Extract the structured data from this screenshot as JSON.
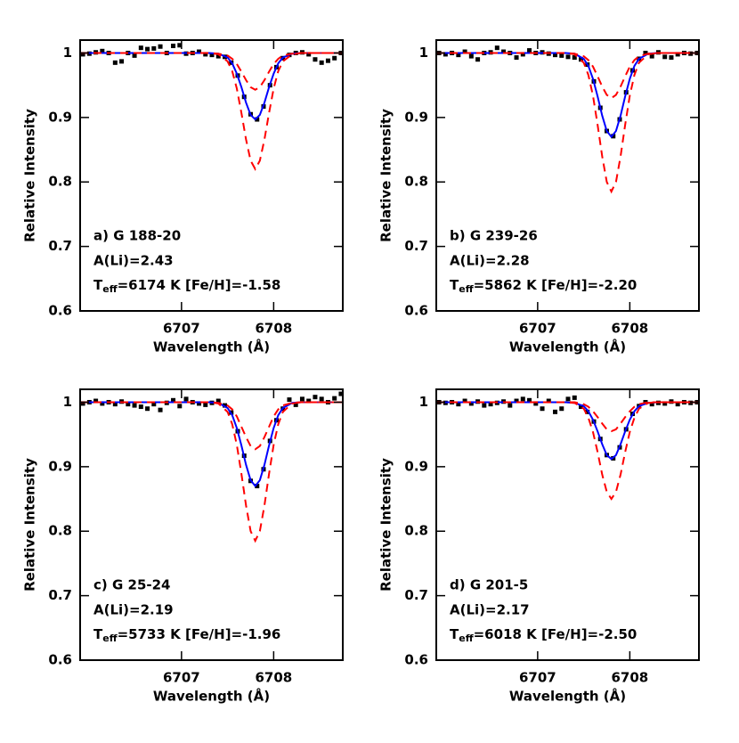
{
  "chart_data": [
    {
      "type": "line",
      "x": [
        6705.9,
        6707.3,
        6707.4,
        6707.5,
        6707.55,
        6707.6,
        6707.65,
        6707.7,
        6707.75,
        6707.8,
        6707.85,
        6707.9,
        6707.95,
        6708.0,
        6708.05,
        6708.1,
        6708.2,
        6708.3,
        6708.75
      ],
      "xlim": [
        6705.9,
        6708.75
      ],
      "xticks": [
        6707,
        6708
      ],
      "ylim": [
        0.6,
        1.02
      ],
      "yticks": [
        0.6,
        0.7,
        0.8,
        0.9,
        1
      ],
      "xlabel": "Wavelength (Å)",
      "ylabel": "Relative Intensity",
      "annotations": [
        "a) G 188-20",
        "A(Li)=2.43",
        "T",
        "eff",
        "=6174 K  [Fe/H]=-1.58"
      ],
      "series": [
        {
          "marker": "square",
          "color": "#000000",
          "x": [
            6705.93,
            6706.0,
            6706.07,
            6706.14,
            6706.21,
            6706.28,
            6706.35,
            6706.42,
            6706.49,
            6706.56,
            6706.63,
            6706.7,
            6706.77,
            6706.84,
            6706.91,
            6706.98,
            6707.05,
            6707.12,
            6707.19,
            6707.26,
            6707.33,
            6707.4,
            6707.47,
            6707.54,
            6707.61,
            6707.68,
            6707.75,
            6707.82,
            6707.89,
            6707.96,
            6708.03,
            6708.1,
            6708.17,
            6708.24,
            6708.31,
            6708.38,
            6708.45,
            6708.52,
            6708.59,
            6708.66,
            6708.73
          ],
          "values": [
            0.998,
            0.999,
            1.001,
            1.003,
            1.0,
            0.985,
            0.987,
            1.0,
            0.996,
            1.008,
            1.006,
            1.007,
            1.01,
            1.0,
            1.011,
            1.012,
            0.999,
            1.0,
            1.002,
            0.998,
            0.997,
            0.995,
            0.994,
            0.985,
            0.965,
            0.932,
            0.905,
            0.897,
            0.917,
            0.95,
            0.978,
            0.992,
            0.997,
            1.0,
            1.001,
            0.998,
            0.99,
            0.985,
            0.988,
            0.992,
            1.0
          ]
        },
        {
          "color": "#0000ff",
          "values": [
            1,
            1,
            0.999,
            0.993,
            0.984,
            0.968,
            0.947,
            0.923,
            0.904,
            0.897,
            0.904,
            0.923,
            0.947,
            0.968,
            0.984,
            0.993,
            0.999,
            1,
            1
          ]
        },
        {
          "color": "#ff0000",
          "dash": true,
          "values": [
            1,
            1,
            0.999,
            0.996,
            0.991,
            0.983,
            0.971,
            0.958,
            0.947,
            0.943,
            0.947,
            0.958,
            0.971,
            0.983,
            0.991,
            0.996,
            0.999,
            1,
            1
          ]
        },
        {
          "color": "#ff0000",
          "dash": true,
          "values": [
            1,
            1,
            0.998,
            0.987,
            0.972,
            0.945,
            0.907,
            0.866,
            0.833,
            0.82,
            0.833,
            0.866,
            0.907,
            0.945,
            0.972,
            0.987,
            0.998,
            1,
            1
          ]
        }
      ]
    },
    {
      "type": "line",
      "x": [
        6705.9,
        6707.3,
        6707.4,
        6707.5,
        6707.55,
        6707.6,
        6707.65,
        6707.7,
        6707.75,
        6707.8,
        6707.85,
        6707.9,
        6707.95,
        6708.0,
        6708.05,
        6708.1,
        6708.2,
        6708.3,
        6708.75
      ],
      "xlim": [
        6705.9,
        6708.75
      ],
      "xticks": [
        6707,
        6708
      ],
      "ylim": [
        0.6,
        1.02
      ],
      "yticks": [
        0.6,
        0.7,
        0.8,
        0.9,
        1
      ],
      "xlabel": "Wavelength (Å)",
      "ylabel": "Relative Intensity",
      "annotations": [
        "b) G 239-26",
        "A(Li)=2.28",
        "T",
        "eff",
        "=5862 K  [Fe/H]=-2.20"
      ],
      "series": [
        {
          "marker": "square",
          "color": "#000000",
          "x": [
            6705.93,
            6706.0,
            6706.07,
            6706.14,
            6706.21,
            6706.28,
            6706.35,
            6706.42,
            6706.49,
            6706.56,
            6706.63,
            6706.7,
            6706.77,
            6706.84,
            6706.91,
            6706.98,
            6707.05,
            6707.12,
            6707.19,
            6707.26,
            6707.33,
            6707.4,
            6707.47,
            6707.54,
            6707.61,
            6707.68,
            6707.75,
            6707.82,
            6707.89,
            6707.96,
            6708.03,
            6708.1,
            6708.17,
            6708.24,
            6708.31,
            6708.38,
            6708.45,
            6708.52,
            6708.59,
            6708.66,
            6708.73
          ],
          "values": [
            1.0,
            0.998,
            1.0,
            0.997,
            1.002,
            0.995,
            0.99,
            1.0,
            1.001,
            1.008,
            1.002,
            1.0,
            0.993,
            0.998,
            1.004,
            1.0,
            1.001,
            0.999,
            0.997,
            0.996,
            0.994,
            0.993,
            0.99,
            0.982,
            0.956,
            0.915,
            0.879,
            0.871,
            0.897,
            0.939,
            0.973,
            0.991,
            1.0,
            0.995,
            1.001,
            0.994,
            0.993,
            0.998,
            1.0,
            0.999,
            1.0
          ]
        },
        {
          "color": "#0000ff",
          "values": [
            1,
            1,
            0.999,
            0.991,
            0.98,
            0.96,
            0.933,
            0.903,
            0.879,
            0.87,
            0.879,
            0.903,
            0.933,
            0.96,
            0.98,
            0.991,
            0.999,
            1,
            1
          ]
        },
        {
          "color": "#ff0000",
          "dash": true,
          "values": [
            1,
            1,
            0.999,
            0.995,
            0.989,
            0.979,
            0.964,
            0.948,
            0.935,
            0.93,
            0.935,
            0.948,
            0.964,
            0.979,
            0.989,
            0.995,
            0.999,
            1,
            1
          ]
        },
        {
          "color": "#ff0000",
          "dash": true,
          "values": [
            1,
            1,
            0.998,
            0.985,
            0.966,
            0.934,
            0.889,
            0.84,
            0.8,
            0.785,
            0.8,
            0.84,
            0.889,
            0.934,
            0.966,
            0.985,
            0.998,
            1,
            1
          ]
        }
      ]
    },
    {
      "type": "line",
      "x": [
        6705.9,
        6707.3,
        6707.4,
        6707.5,
        6707.55,
        6707.6,
        6707.65,
        6707.7,
        6707.75,
        6707.8,
        6707.85,
        6707.9,
        6707.95,
        6708.0,
        6708.05,
        6708.1,
        6708.2,
        6708.3,
        6708.75
      ],
      "xlim": [
        6705.9,
        6708.75
      ],
      "xticks": [
        6707,
        6708
      ],
      "ylim": [
        0.6,
        1.02
      ],
      "yticks": [
        0.6,
        0.7,
        0.8,
        0.9,
        1
      ],
      "xlabel": "Wavelength (Å)",
      "ylabel": "Relative Intensity",
      "annotations": [
        "c) G 25-24",
        "A(Li)=2.19",
        "T",
        "eff",
        "=5733 K  [Fe/H]=-1.96"
      ],
      "series": [
        {
          "marker": "square",
          "color": "#000000",
          "x": [
            6705.93,
            6706.0,
            6706.07,
            6706.14,
            6706.21,
            6706.28,
            6706.35,
            6706.42,
            6706.49,
            6706.56,
            6706.63,
            6706.7,
            6706.77,
            6706.84,
            6706.91,
            6706.98,
            6707.05,
            6707.12,
            6707.19,
            6707.26,
            6707.33,
            6707.4,
            6707.47,
            6707.54,
            6707.61,
            6707.68,
            6707.75,
            6707.82,
            6707.89,
            6707.96,
            6708.03,
            6708.1,
            6708.17,
            6708.24,
            6708.31,
            6708.38,
            6708.45,
            6708.52,
            6708.59,
            6708.66,
            6708.73
          ],
          "values": [
            0.998,
            1.0,
            1.002,
            0.998,
            1.0,
            0.997,
            1.001,
            0.997,
            0.995,
            0.993,
            0.99,
            0.997,
            0.988,
            0.999,
            1.003,
            0.994,
            1.005,
            1.0,
            0.998,
            0.996,
            0.999,
            1.002,
            0.995,
            0.984,
            0.955,
            0.917,
            0.878,
            0.87,
            0.896,
            0.94,
            0.972,
            0.99,
            1.004,
            0.996,
            1.005,
            1.002,
            1.008,
            1.005,
            1.0,
            1.006,
            1.013
          ]
        },
        {
          "color": "#0000ff",
          "values": [
            1,
            1,
            0.999,
            0.991,
            0.98,
            0.96,
            0.933,
            0.903,
            0.879,
            0.87,
            0.879,
            0.903,
            0.933,
            0.96,
            0.98,
            0.991,
            0.999,
            1,
            1
          ]
        },
        {
          "color": "#ff0000",
          "dash": true,
          "values": [
            1,
            1,
            0.999,
            0.995,
            0.989,
            0.978,
            0.962,
            0.946,
            0.932,
            0.927,
            0.932,
            0.946,
            0.962,
            0.978,
            0.989,
            0.995,
            0.999,
            1,
            1
          ]
        },
        {
          "color": "#ff0000",
          "dash": true,
          "values": [
            1,
            1,
            0.998,
            0.985,
            0.966,
            0.934,
            0.889,
            0.84,
            0.8,
            0.785,
            0.8,
            0.84,
            0.889,
            0.934,
            0.966,
            0.985,
            0.998,
            1,
            1
          ]
        }
      ]
    },
    {
      "type": "line",
      "x": [
        6705.9,
        6707.3,
        6707.4,
        6707.5,
        6707.55,
        6707.6,
        6707.65,
        6707.7,
        6707.75,
        6707.8,
        6707.85,
        6707.9,
        6707.95,
        6708.0,
        6708.05,
        6708.1,
        6708.2,
        6708.3,
        6708.75
      ],
      "xlim": [
        6705.9,
        6708.75
      ],
      "xticks": [
        6707,
        6708
      ],
      "ylim": [
        0.6,
        1.02
      ],
      "yticks": [
        0.6,
        0.7,
        0.8,
        0.9,
        1
      ],
      "xlabel": "Wavelength (Å)",
      "ylabel": "Relative Intensity",
      "annotations": [
        "d) G 201-5",
        "A(Li)=2.17",
        "T",
        "eff",
        "=6018 K  [Fe/H]=-2.50"
      ],
      "series": [
        {
          "marker": "square",
          "color": "#000000",
          "x": [
            6705.93,
            6706.0,
            6706.07,
            6706.14,
            6706.21,
            6706.28,
            6706.35,
            6706.42,
            6706.49,
            6706.56,
            6706.63,
            6706.7,
            6706.77,
            6706.84,
            6706.91,
            6706.98,
            6707.05,
            6707.12,
            6707.19,
            6707.26,
            6707.33,
            6707.4,
            6707.47,
            6707.54,
            6707.61,
            6707.68,
            6707.75,
            6707.82,
            6707.89,
            6707.96,
            6708.03,
            6708.1,
            6708.17,
            6708.24,
            6708.31,
            6708.38,
            6708.45,
            6708.52,
            6708.59,
            6708.66,
            6708.73
          ],
          "values": [
            1.0,
            0.999,
            1.0,
            0.997,
            1.002,
            0.998,
            1.001,
            0.995,
            0.997,
            0.999,
            1.001,
            0.995,
            1.002,
            1.005,
            1.003,
            0.998,
            0.99,
            1.002,
            0.985,
            0.99,
            1.005,
            1.007,
            0.993,
            0.985,
            0.97,
            0.943,
            0.918,
            0.913,
            0.93,
            0.958,
            0.982,
            0.994,
            1.0,
            0.997,
            0.999,
            0.998,
            1.001,
            0.997,
            1.0,
            0.999,
            1.0
          ]
        },
        {
          "color": "#0000ff",
          "values": [
            1,
            1,
            0.999,
            0.994,
            0.986,
            0.973,
            0.955,
            0.935,
            0.918,
            0.912,
            0.918,
            0.935,
            0.955,
            0.973,
            0.986,
            0.994,
            0.999,
            1,
            1
          ]
        },
        {
          "color": "#ff0000",
          "dash": true,
          "values": [
            1,
            1,
            1,
            0.997,
            0.993,
            0.986,
            0.977,
            0.967,
            0.958,
            0.955,
            0.958,
            0.967,
            0.977,
            0.986,
            0.993,
            0.997,
            1,
            1,
            1
          ]
        },
        {
          "color": "#ff0000",
          "dash": true,
          "values": [
            1,
            1,
            0.999,
            0.99,
            0.976,
            0.954,
            0.923,
            0.888,
            0.861,
            0.85,
            0.861,
            0.888,
            0.923,
            0.954,
            0.976,
            0.99,
            0.999,
            1,
            1
          ]
        }
      ]
    }
  ]
}
